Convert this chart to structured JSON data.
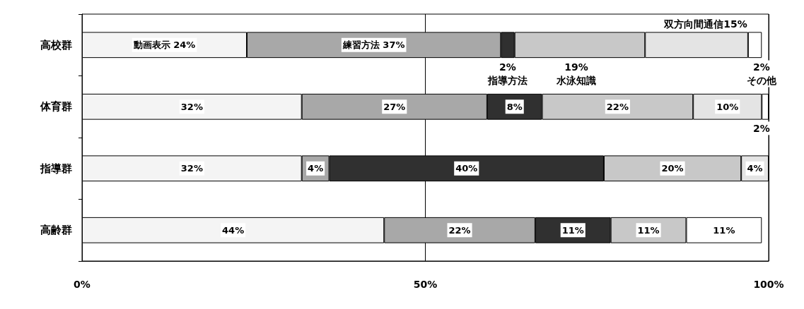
{
  "chart_data": {
    "type": "bar",
    "orientation": "horizontal",
    "stacked": true,
    "categories": [
      "高校群",
      "体育群",
      "指導群",
      "高齢群"
    ],
    "series": [
      {
        "color": "#f4f4f4",
        "values": [
          24,
          32,
          32,
          44
        ],
        "value_labels": [
          "動画表示 24%",
          "32%",
          "32%",
          "44%"
        ]
      },
      {
        "color": "#a8a8a8",
        "values": [
          37,
          27,
          4,
          22
        ],
        "value_labels": [
          "練習方法 37%",
          "27%",
          "4%",
          "22%"
        ]
      },
      {
        "color": "#303030",
        "values": [
          2,
          8,
          40,
          11
        ],
        "value_labels": [
          null,
          "8%",
          "40%",
          "11%"
        ]
      },
      {
        "color": "#c8c8c8",
        "values": [
          19,
          22,
          20,
          11
        ],
        "value_labels": [
          null,
          "22%",
          "20%",
          "11%"
        ]
      },
      {
        "color": "#e4e4e4",
        "values": [
          15,
          10,
          4,
          null
        ],
        "value_labels": [
          null,
          "10%",
          "4%",
          null
        ]
      },
      {
        "color": "#ffffff",
        "values": [
          2,
          1,
          null,
          11
        ],
        "value_labels": [
          null,
          null,
          null,
          "11%"
        ]
      }
    ],
    "annotations": [
      "2%\n指導方法",
      "19%\n水泳知識",
      "双方向間通信15%",
      "2%\nその他",
      "2%"
    ],
    "xlim": [
      0,
      100
    ],
    "xticks": [
      {
        "value": 0,
        "label": "0%"
      },
      {
        "value": 50,
        "label": "50%"
      },
      {
        "value": 100,
        "label": "100%"
      }
    ],
    "grid": "x"
  }
}
